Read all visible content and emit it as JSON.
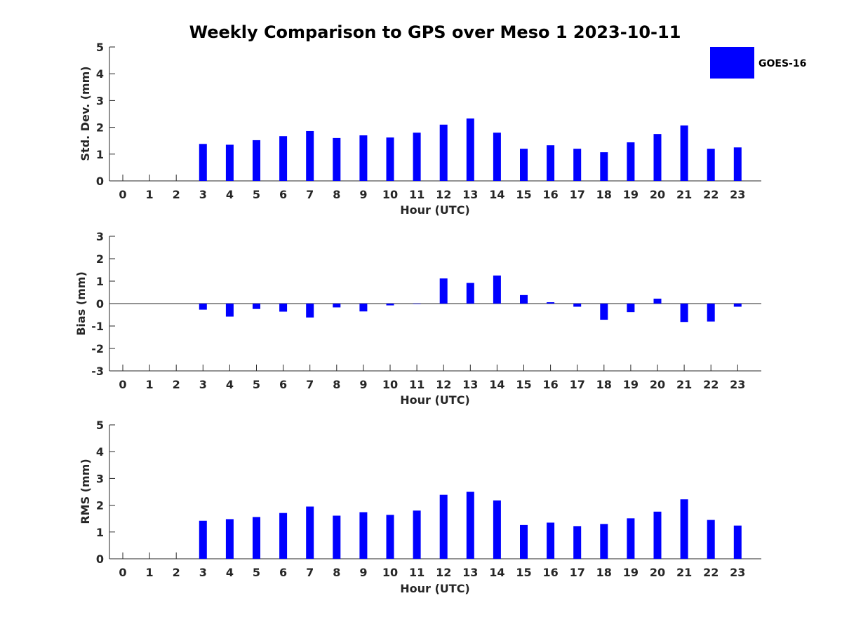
{
  "chart_data": {
    "title": "Weekly Comparison to GPS over Meso 1 2023-10-11",
    "legend": {
      "label": "GOES-16",
      "placement": "top-right",
      "color": "#0000ff"
    },
    "bar_color": "#0000ff",
    "categories": [
      "0",
      "1",
      "2",
      "3",
      "4",
      "5",
      "6",
      "7",
      "8",
      "9",
      "10",
      "11",
      "12",
      "13",
      "14",
      "15",
      "16",
      "17",
      "18",
      "19",
      "20",
      "21",
      "22",
      "23"
    ],
    "panels": [
      {
        "type": "bar",
        "series_name": "GOES-16",
        "ylabel": "Std. Dev. (mm)",
        "xlabel": "Hour (UTC)",
        "ylim": [
          0,
          5
        ],
        "yticks": [
          "0",
          "1",
          "2",
          "3",
          "4",
          "5"
        ],
        "values": [
          null,
          null,
          null,
          1.38,
          1.35,
          1.52,
          1.67,
          1.86,
          1.6,
          1.7,
          1.62,
          1.8,
          2.1,
          2.33,
          1.8,
          1.2,
          1.33,
          1.2,
          1.07,
          1.44,
          1.75,
          2.07,
          1.2,
          1.25
        ]
      },
      {
        "type": "bar",
        "series_name": "GOES-16",
        "ylabel": "Bias (mm)",
        "xlabel": "Hour (UTC)",
        "ylim": [
          -3,
          3
        ],
        "yticks": [
          "-3",
          "-2",
          "-1",
          "0",
          "1",
          "2",
          "3"
        ],
        "values": [
          null,
          null,
          null,
          -0.27,
          -0.58,
          -0.24,
          -0.36,
          -0.62,
          -0.17,
          -0.35,
          -0.08,
          -0.02,
          1.12,
          0.92,
          1.25,
          0.38,
          0.06,
          -0.14,
          -0.72,
          -0.38,
          0.22,
          -0.82,
          -0.8,
          -0.14
        ]
      },
      {
        "type": "bar",
        "series_name": "GOES-16",
        "ylabel": "RMS (mm)",
        "xlabel": "Hour (UTC)",
        "ylim": [
          0,
          5
        ],
        "yticks": [
          "0",
          "1",
          "2",
          "3",
          "4",
          "5"
        ],
        "values": [
          null,
          null,
          null,
          1.42,
          1.48,
          1.56,
          1.71,
          1.95,
          1.61,
          1.74,
          1.64,
          1.8,
          2.39,
          2.5,
          2.18,
          1.26,
          1.35,
          1.22,
          1.3,
          1.51,
          1.76,
          2.22,
          1.45,
          1.24
        ]
      }
    ]
  }
}
